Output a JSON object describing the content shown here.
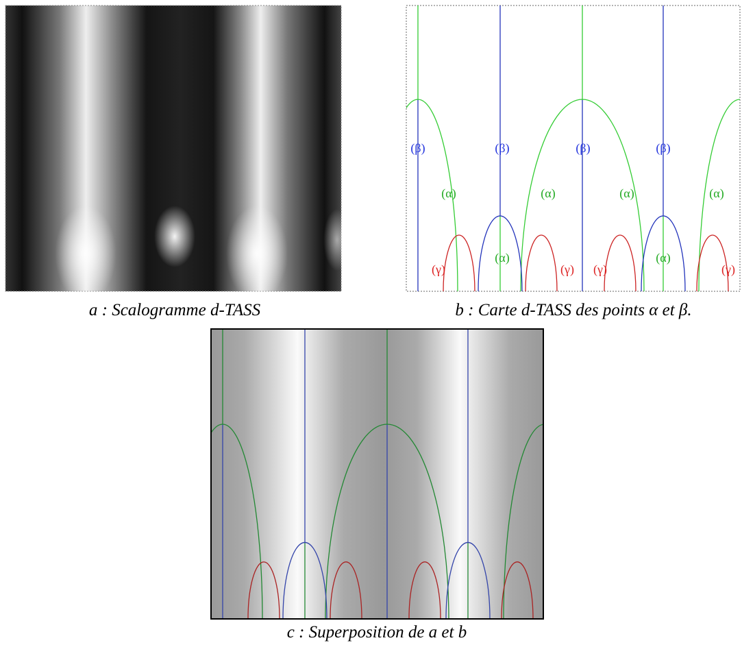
{
  "panels": [
    {
      "caption": "a : Scalogramme d-TASS"
    },
    {
      "caption": "b : Carte d-TASS des points α et β.",
      "labels": [
        "(β)",
        "(β)",
        "(β)",
        "(β)",
        "(α)",
        "(α)",
        "(α)",
        "(α)",
        "(α)",
        "(α)",
        "(γ)",
        "(γ)",
        "(γ)",
        "(γ)"
      ]
    },
    {
      "caption": "c : Superposition de a et b"
    }
  ]
}
